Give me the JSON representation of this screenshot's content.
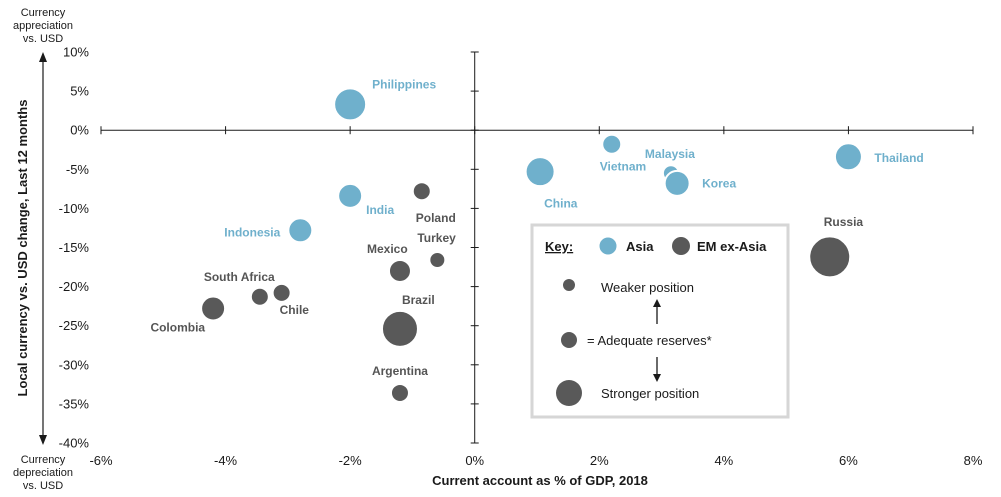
{
  "colors": {
    "asia": "#6fb0cc",
    "em_ex_asia": "#595959",
    "key_border": "#d0d0d0",
    "asia_label": "#6fb0cc",
    "em_label": "#555555"
  },
  "chart_data": {
    "type": "scatter",
    "xlabel": "Current account as % of GDP, 2018",
    "ylabel": "Local currency vs. USD change, Last 12 months",
    "xlim": [
      -6,
      8
    ],
    "ylim": [
      -40,
      10
    ],
    "x_ticks": [
      -6,
      -4,
      -2,
      0,
      2,
      4,
      6,
      8
    ],
    "y_ticks": [
      10,
      5,
      0,
      -5,
      -10,
      -15,
      -20,
      -25,
      -30,
      -35,
      -40
    ],
    "x_tick_labels": [
      "-6%",
      "-4%",
      "-2%",
      "0%",
      "2%",
      "4%",
      "6%",
      "8%"
    ],
    "y_tick_labels": [
      "10%",
      "5%",
      "0%",
      "-5%",
      "-10%",
      "-15%",
      "-20%",
      "-25%",
      "-30%",
      "-35%",
      "-40%"
    ],
    "grid": false,
    "annotations": {
      "top_line1": "Currency",
      "top_line2": "appreciation",
      "top_line3": "vs. USD",
      "bottom_line1": "Currency",
      "bottom_line2": "depreciation",
      "bottom_line3": "vs. USD"
    },
    "legend": {
      "title": "Key:",
      "asia": "Asia",
      "em_ex_asia": "EM ex-Asia",
      "weaker": "Weaker position",
      "adequate": "= Adequate reserves*",
      "stronger": "Stronger position"
    },
    "series": [
      {
        "name": "Asia",
        "points": [
          {
            "label": "Philippines",
            "x": -2.0,
            "y": 3.3,
            "size": 1.6
          },
          {
            "label": "India",
            "x": -2.0,
            "y": -8.4,
            "size": 1.2
          },
          {
            "label": "Indonesia",
            "x": -2.8,
            "y": -12.8,
            "size": 1.2
          },
          {
            "label": "China",
            "x": 1.05,
            "y": -5.3,
            "size": 1.45
          },
          {
            "label": "Vietnam",
            "x": 2.2,
            "y": -1.8,
            "size": 0.95
          },
          {
            "label": "Malaysia",
            "x": 3.15,
            "y": -5.5,
            "size": 0.8
          },
          {
            "label": "Korea",
            "x": 3.25,
            "y": -6.8,
            "size": 1.25
          },
          {
            "label": "Thailand",
            "x": 6.0,
            "y": -3.4,
            "size": 1.35
          }
        ]
      },
      {
        "name": "EM ex-Asia",
        "points": [
          {
            "label": "Poland",
            "x": -0.85,
            "y": -7.8,
            "size": 0.9
          },
          {
            "label": "Turkey",
            "x": -0.6,
            "y": -16.6,
            "size": 0.8
          },
          {
            "label": "Mexico",
            "x": -1.2,
            "y": -18.0,
            "size": 1.1
          },
          {
            "label": "Brazil",
            "x": -1.2,
            "y": -25.4,
            "size": 1.8
          },
          {
            "label": "Argentina",
            "x": -1.2,
            "y": -33.6,
            "size": 0.9
          },
          {
            "label": "South Africa",
            "x": -3.45,
            "y": -21.3,
            "size": 0.9
          },
          {
            "label": "Chile",
            "x": -3.1,
            "y": -20.8,
            "size": 0.9
          },
          {
            "label": "Colombia",
            "x": -4.2,
            "y": -22.8,
            "size": 1.2
          },
          {
            "label": "Russia",
            "x": 5.7,
            "y": -16.2,
            "size": 2.05
          }
        ]
      }
    ]
  }
}
